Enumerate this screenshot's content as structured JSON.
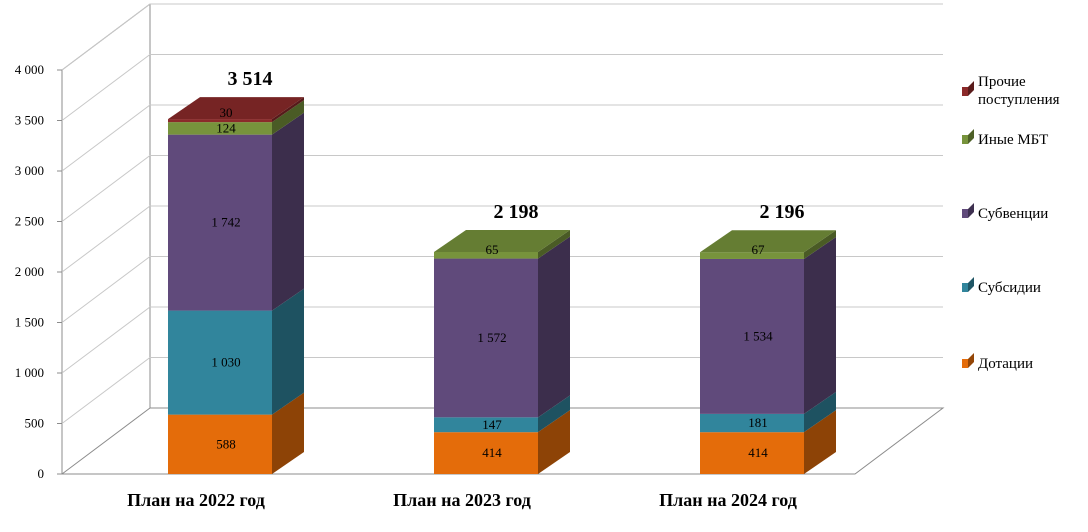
{
  "chart_data": {
    "type": "bar",
    "stacked": true,
    "three_d": true,
    "categories": [
      "План на 2022 год",
      "План на 2023 год",
      "План на 2024 год"
    ],
    "totals": [
      "3 514",
      "2 198",
      "2 196"
    ],
    "series": [
      {
        "name": "Дотации",
        "color": "#e46c0a",
        "values": [
          588,
          414,
          414
        ],
        "labels": [
          "588",
          "414",
          "414"
        ]
      },
      {
        "name": "Субсидии",
        "color": "#31859c",
        "values": [
          1030,
          147,
          181
        ],
        "labels": [
          "1 030",
          "147",
          "181"
        ]
      },
      {
        "name": "Субвенции",
        "color": "#604a7b",
        "values": [
          1742,
          1572,
          1534
        ],
        "labels": [
          "1 742",
          "1 572",
          "1 534"
        ]
      },
      {
        "name": "Иные МБТ",
        "color": "#77933c",
        "values": [
          124,
          65,
          67
        ],
        "labels": [
          "124",
          "65",
          "67"
        ]
      },
      {
        "name": "Прочие поступления",
        "color": "#8b2a2a",
        "values": [
          30,
          0,
          0
        ],
        "labels": [
          "30",
          "",
          ""
        ]
      }
    ],
    "legend_order": [
      "Прочие поступления",
      "Иные МБТ",
      "Субвенции",
      "Субсидии",
      "Дотации"
    ],
    "legend_lines": {
      "Прочие поступления": [
        "Прочие",
        "поступления"
      ]
    },
    "y_ticks": [
      "0",
      "500",
      "1 000",
      "1 500",
      "2 000",
      "2 500",
      "3 000",
      "3 500",
      "4 000"
    ],
    "ylim": [
      0,
      4000
    ],
    "grid": true,
    "legend_position": "right"
  }
}
